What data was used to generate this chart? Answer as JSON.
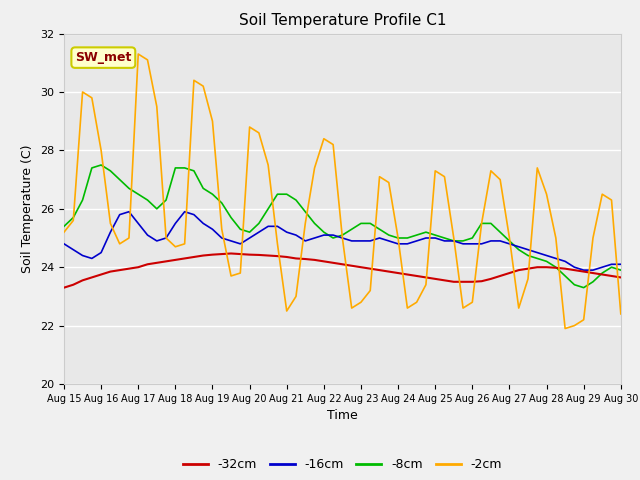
{
  "title": "Soil Temperature Profile C1",
  "xlabel": "Time",
  "ylabel": "Soil Temperature (C)",
  "ylim": [
    20,
    32
  ],
  "fig_bg_color": "#f0f0f0",
  "plot_bg_color": "#e8e8e8",
  "sensor_label": "SW_met",
  "legend_entries": [
    "-32cm",
    "-16cm",
    "-8cm",
    "-2cm"
  ],
  "line_colors": [
    "#cc0000",
    "#0000cc",
    "#00bb00",
    "#ffaa00"
  ],
  "xtick_labels": [
    "Aug 15",
    "Aug 16",
    "Aug 17",
    "Aug 18",
    "Aug 19",
    "Aug 20",
    "Aug 21",
    "Aug 22",
    "Aug 23",
    "Aug 24",
    "Aug 25",
    "Aug 26",
    "Aug 27",
    "Aug 28",
    "Aug 29",
    "Aug 30"
  ],
  "red_data": [
    23.3,
    23.4,
    23.55,
    23.65,
    23.75,
    23.85,
    23.9,
    23.95,
    24.0,
    24.1,
    24.15,
    24.2,
    24.25,
    24.3,
    24.35,
    24.4,
    24.43,
    24.45,
    24.47,
    24.45,
    24.43,
    24.42,
    24.4,
    24.38,
    24.35,
    24.3,
    24.28,
    24.25,
    24.2,
    24.15,
    24.1,
    24.05,
    24.0,
    23.95,
    23.9,
    23.85,
    23.8,
    23.75,
    23.7,
    23.65,
    23.6,
    23.55,
    23.5,
    23.5,
    23.5,
    23.52,
    23.6,
    23.7,
    23.8,
    23.9,
    23.95,
    24.0,
    24.0,
    23.98,
    23.95,
    23.9,
    23.85,
    23.8,
    23.75,
    23.7,
    23.65
  ],
  "blue_data": [
    24.8,
    24.6,
    24.4,
    24.3,
    24.5,
    25.2,
    25.8,
    25.9,
    25.5,
    25.1,
    24.9,
    25.0,
    25.5,
    25.9,
    25.8,
    25.5,
    25.3,
    25.0,
    24.9,
    24.8,
    25.0,
    25.2,
    25.4,
    25.4,
    25.2,
    25.1,
    24.9,
    25.0,
    25.1,
    25.1,
    25.0,
    24.9,
    24.9,
    24.9,
    25.0,
    24.9,
    24.8,
    24.8,
    24.9,
    25.0,
    25.0,
    24.9,
    24.9,
    24.8,
    24.8,
    24.8,
    24.9,
    24.9,
    24.8,
    24.7,
    24.6,
    24.5,
    24.4,
    24.3,
    24.2,
    24.0,
    23.9,
    23.9,
    24.0,
    24.1,
    24.1
  ],
  "green_data": [
    25.4,
    25.7,
    26.3,
    27.4,
    27.5,
    27.3,
    27.0,
    26.7,
    26.5,
    26.3,
    26.0,
    26.3,
    27.4,
    27.4,
    27.3,
    26.7,
    26.5,
    26.2,
    25.7,
    25.3,
    25.2,
    25.5,
    26.0,
    26.5,
    26.5,
    26.3,
    25.9,
    25.5,
    25.2,
    25.0,
    25.1,
    25.3,
    25.5,
    25.5,
    25.3,
    25.1,
    25.0,
    25.0,
    25.1,
    25.2,
    25.1,
    25.0,
    24.9,
    24.9,
    25.0,
    25.5,
    25.5,
    25.2,
    24.9,
    24.6,
    24.4,
    24.3,
    24.2,
    24.0,
    23.7,
    23.4,
    23.3,
    23.5,
    23.8,
    24.0,
    23.9
  ],
  "orange_data": [
    25.2,
    25.6,
    30.0,
    29.8,
    28.0,
    25.5,
    24.8,
    25.0,
    31.3,
    31.1,
    29.5,
    25.0,
    24.7,
    24.8,
    30.4,
    30.2,
    29.0,
    25.3,
    23.7,
    23.8,
    28.8,
    28.6,
    27.5,
    24.8,
    22.5,
    23.0,
    25.5,
    27.4,
    28.4,
    28.2,
    25.0,
    22.6,
    22.8,
    23.2,
    27.1,
    26.9,
    25.0,
    22.6,
    22.8,
    23.4,
    27.3,
    27.1,
    25.0,
    22.6,
    22.8,
    25.5,
    27.3,
    27.0,
    25.0,
    22.6,
    23.6,
    27.4,
    26.5,
    25.0,
    21.9,
    22.0,
    22.2,
    25.0,
    26.5,
    26.3,
    22.4
  ]
}
